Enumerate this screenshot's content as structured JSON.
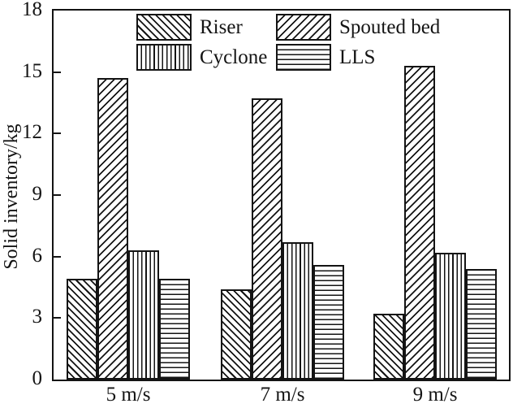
{
  "figure": {
    "background_color": "#ffffff",
    "line_color": "#141414"
  },
  "chart_data": {
    "type": "bar",
    "title": "",
    "xlabel": "",
    "ylabel": "Solid inventory/kg",
    "ylim": [
      0,
      18
    ],
    "yticks": [
      0,
      3,
      6,
      9,
      12,
      15,
      18
    ],
    "grid": false,
    "legend_position": "top-inside",
    "categories": [
      "5 m/s",
      "7 m/s",
      "9 m/s"
    ],
    "series": [
      {
        "name": "Riser",
        "pattern": "diagonal-forward",
        "values": [
          4.9,
          4.4,
          3.2
        ]
      },
      {
        "name": "Spouted bed",
        "pattern": "diagonal-backward",
        "values": [
          14.7,
          13.7,
          15.3
        ]
      },
      {
        "name": "Cyclone",
        "pattern": "vertical-lines",
        "values": [
          6.3,
          6.7,
          6.2
        ]
      },
      {
        "name": "LLS",
        "pattern": "horizontal-lines",
        "values": [
          4.9,
          5.6,
          5.4
        ]
      }
    ]
  },
  "legend": {
    "entries": [
      {
        "label": "Riser",
        "pattern": "diagonal-forward"
      },
      {
        "label": "Spouted bed",
        "pattern": "diagonal-backward"
      },
      {
        "label": "Cyclone",
        "pattern": "vertical-lines"
      },
      {
        "label": "LLS",
        "pattern": "horizontal-lines"
      }
    ]
  }
}
